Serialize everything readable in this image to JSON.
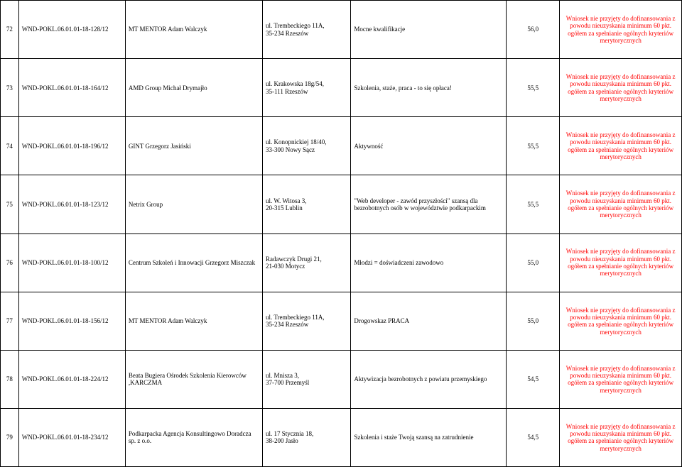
{
  "colors": {
    "text": "#000000",
    "note_text": "#ff0000",
    "border": "#000000",
    "bg": "#ffffff"
  },
  "note_common": "Wniosek nie przyjęty do dofinansowania z powodu nieuzyskania minimum 60 pkt. ogółem za spełnianie ogólnych kryteriów merytorycznych",
  "rows": [
    {
      "n": "72",
      "code": "WND-POKL.06.01.01-18-128/12",
      "org": "MT MENTOR Adam Walczyk",
      "addr": "ul. Trembeckiego 11A,\n35-234 Rzeszów",
      "desc": "Mocne kwalifikacje",
      "score": "56,0"
    },
    {
      "n": "73",
      "code": "WND-POKL.06.01.01-18-164/12",
      "org": "AMD Group Michał Drymajło",
      "addr": "ul. Krakowska 18g/54,\n35-111 Rzeszów",
      "desc": "Szkolenia, staże, praca - to się opłaca!",
      "score": "55,5"
    },
    {
      "n": "74",
      "code": "WND-POKL.06.01.01-18-196/12",
      "org": "GINT Grzegorz Jasiński",
      "addr": "ul. Konopnickiej 18/40,\n33-300 Nowy Sącz",
      "desc": "Aktywność",
      "score": "55,5"
    },
    {
      "n": "75",
      "code": "WND-POKL.06.01.01-18-123/12",
      "org": "Netrix Group",
      "addr": "ul. W. Witosa 3,\n20-315 Lublin",
      "desc": "\"Web developer - zawód przyszłości\" szansą dla bezrobotnych osób w województwie podkarpackim",
      "score": "55,5"
    },
    {
      "n": "76",
      "code": "WND-POKL.06.01.01-18-100/12",
      "org": "Centrum Szkoleń i Innowacji Grzegorz Miszczak",
      "addr": "Radawczyk Drugi 21,\n21-030 Motycz",
      "desc": "Młodzi = doświadczeni zawodowo",
      "score": "55,0"
    },
    {
      "n": "77",
      "code": "WND-POKL.06.01.01-18-156/12",
      "org": "MT MENTOR Adam Walczyk",
      "addr": "ul. Trembeckiego 11A,\n35-234 Rzeszów",
      "desc": "Drogowskaz PRACA",
      "score": "55,0"
    },
    {
      "n": "78",
      "code": "WND-POKL.06.01.01-18-224/12",
      "org": "Beata Bugiera Ośrodek Szkolenia Kierowców ,KARCZMA",
      "addr": "ul. Mnisza 3,\n37-700 Przemyśl",
      "desc": "Aktywizacja bezrobotnych z powiatu przemyskiego",
      "score": "54,5"
    },
    {
      "n": "79",
      "code": "WND-POKL.06.01.01-18-234/12",
      "org": "Podkarpacka Agencja Konsultingowo Doradcza sp. z o.o.",
      "addr": "ul. 17 Stycznia 18,\n38-200 Jasło",
      "desc": "Szkolenia i staże Twoją szansą na zatrudnienie",
      "score": "54,5"
    }
  ]
}
